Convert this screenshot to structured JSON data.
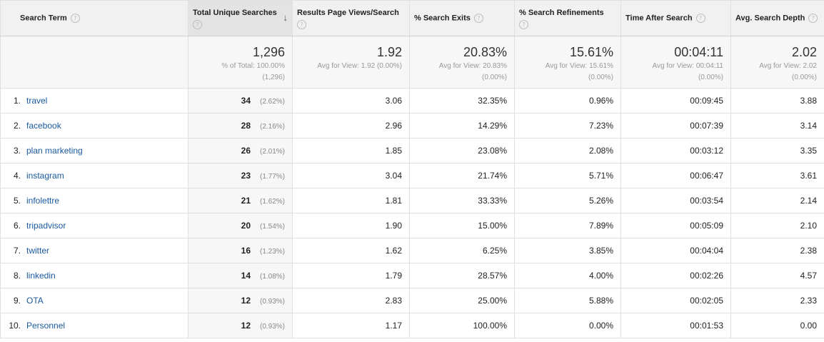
{
  "columns": [
    {
      "label": "Search Term"
    },
    {
      "label": "Total Unique Searches"
    },
    {
      "label": "Results Page Views/Search"
    },
    {
      "label": "% Search Exits"
    },
    {
      "label": "% Search Refinements"
    },
    {
      "label": "Time After Search"
    },
    {
      "label": "Avg. Search Depth"
    }
  ],
  "help_glyph": "?",
  "sort_glyph": "↓",
  "totals": {
    "unique_searches": {
      "value": "1,296",
      "sub1": "% of Total: 100.00%",
      "sub2": "(1,296)"
    },
    "views_per_search": {
      "value": "1.92",
      "sub1": "Avg for View: 1.92 (0.00%)"
    },
    "exits": {
      "value": "20.83%",
      "sub1": "Avg for View: 20.83%",
      "sub2": "(0.00%)"
    },
    "refinements": {
      "value": "15.61%",
      "sub1": "Avg for View: 15.61%",
      "sub2": "(0.00%)"
    },
    "time_after": {
      "value": "00:04:11",
      "sub1": "Avg for View: 00:04:11",
      "sub2": "(0.00%)"
    },
    "depth": {
      "value": "2.02",
      "sub1": "Avg for View: 2.02",
      "sub2": "(0.00%)"
    }
  },
  "rows": [
    {
      "index": "1.",
      "term": "travel",
      "searches": "34",
      "pct": "(2.62%)",
      "views": "3.06",
      "exits": "32.35%",
      "refinements": "0.96%",
      "time": "00:09:45",
      "depth": "3.88"
    },
    {
      "index": "2.",
      "term": "facebook",
      "searches": "28",
      "pct": "(2.16%)",
      "views": "2.96",
      "exits": "14.29%",
      "refinements": "7.23%",
      "time": "00:07:39",
      "depth": "3.14"
    },
    {
      "index": "3.",
      "term": "plan marketing",
      "searches": "26",
      "pct": "(2.01%)",
      "views": "1.85",
      "exits": "23.08%",
      "refinements": "2.08%",
      "time": "00:03:12",
      "depth": "3.35"
    },
    {
      "index": "4.",
      "term": "instagram",
      "searches": "23",
      "pct": "(1.77%)",
      "views": "3.04",
      "exits": "21.74%",
      "refinements": "5.71%",
      "time": "00:06:47",
      "depth": "3.61"
    },
    {
      "index": "5.",
      "term": "infolettre",
      "searches": "21",
      "pct": "(1.62%)",
      "views": "1.81",
      "exits": "33.33%",
      "refinements": "5.26%",
      "time": "00:03:54",
      "depth": "2.14"
    },
    {
      "index": "6.",
      "term": "tripadvisor",
      "searches": "20",
      "pct": "(1.54%)",
      "views": "1.90",
      "exits": "15.00%",
      "refinements": "7.89%",
      "time": "00:05:09",
      "depth": "2.10"
    },
    {
      "index": "7.",
      "term": "twitter",
      "searches": "16",
      "pct": "(1.23%)",
      "views": "1.62",
      "exits": "6.25%",
      "refinements": "3.85%",
      "time": "00:04:04",
      "depth": "2.38"
    },
    {
      "index": "8.",
      "term": "linkedin",
      "searches": "14",
      "pct": "(1.08%)",
      "views": "1.79",
      "exits": "28.57%",
      "refinements": "4.00%",
      "time": "00:02:26",
      "depth": "4.57"
    },
    {
      "index": "9.",
      "term": "OTA",
      "searches": "12",
      "pct": "(0.93%)",
      "views": "2.83",
      "exits": "25.00%",
      "refinements": "5.88%",
      "time": "00:02:05",
      "depth": "2.33"
    },
    {
      "index": "10.",
      "term": "Personnel",
      "searches": "12",
      "pct": "(0.93%)",
      "views": "1.17",
      "exits": "100.00%",
      "refinements": "0.00%",
      "time": "00:01:53",
      "depth": "0.00"
    }
  ],
  "colors": {
    "header_bg": "#f1f1f1",
    "sorted_header_bg": "#e3e3e3",
    "link": "#1a5aa0",
    "muted": "#999999",
    "border": "#e0e0e0"
  },
  "icons": {
    "help": "help-circle-icon",
    "sort": "sort-descending-arrow-icon"
  }
}
